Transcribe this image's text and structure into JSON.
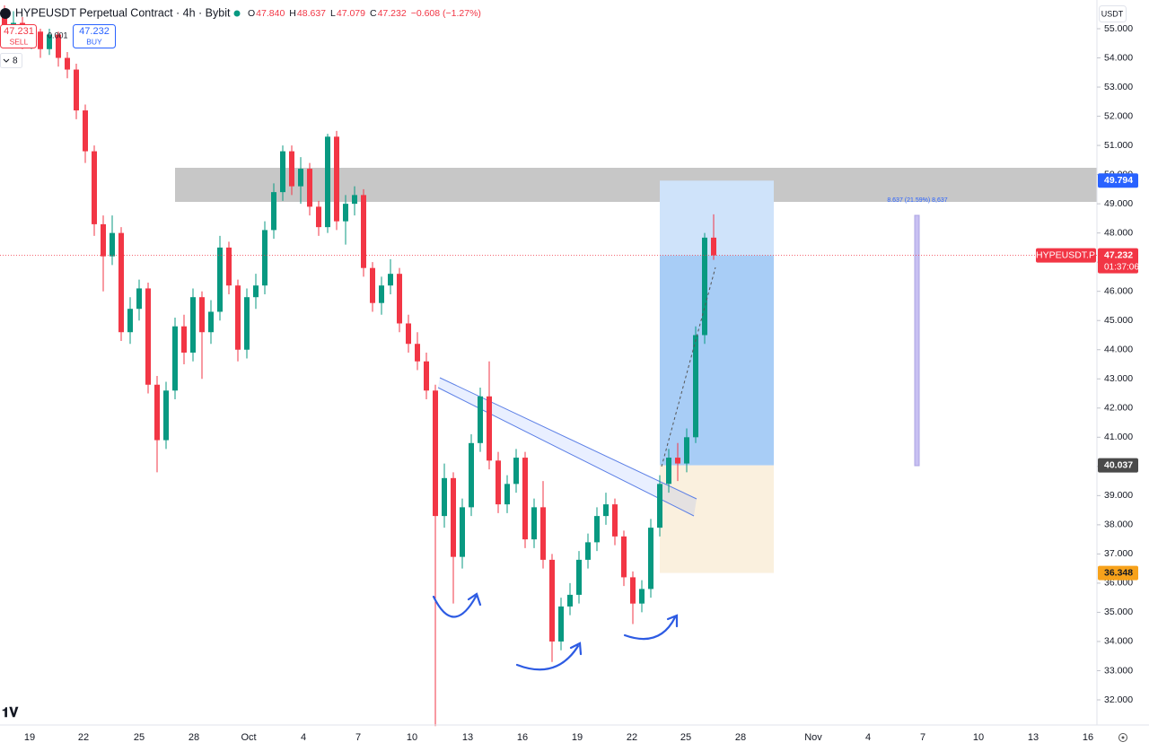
{
  "header": {
    "title": "HYPEUSDT Perpetual Contract · 4h · Bybit",
    "ohlc": [
      {
        "label": "O",
        "value": "47.840"
      },
      {
        "label": "H",
        "value": "48.637"
      },
      {
        "label": "L",
        "value": "47.079"
      },
      {
        "label": "C",
        "value": "47.232"
      }
    ],
    "change": "−0.608 (−1.27%)",
    "sell": {
      "price": "47.231",
      "label": "SELL"
    },
    "quantity": "0.001",
    "buy": {
      "price": "47.232",
      "label": "BUY"
    },
    "indicators": "8",
    "currency": "USDT"
  },
  "chart_data": {
    "type": "candlestick",
    "up_color": "#089981",
    "down_color": "#f23645",
    "grid": false,
    "ylim": [
      32,
      55
    ],
    "yticks": [
      {
        "value": 55,
        "label": "55.000"
      },
      {
        "value": 54,
        "label": "54.000"
      },
      {
        "value": 53,
        "label": "53.000"
      },
      {
        "value": 52,
        "label": "52.000"
      },
      {
        "value": 51,
        "label": "51.000"
      },
      {
        "value": 50,
        "label": "50.000"
      },
      {
        "value": 49,
        "label": "49.000"
      },
      {
        "value": 48,
        "label": "48.000"
      },
      {
        "value": 47,
        "label": "47.000"
      },
      {
        "value": 46,
        "label": "46.000"
      },
      {
        "value": 45,
        "label": "45.000"
      },
      {
        "value": 44,
        "label": "44.000"
      },
      {
        "value": 43,
        "label": "43.000"
      },
      {
        "value": 42,
        "label": "42.000"
      },
      {
        "value": 41,
        "label": "41.000"
      },
      {
        "value": 40,
        "label": "40.000"
      },
      {
        "value": 39,
        "label": "39.000"
      },
      {
        "value": 38,
        "label": "38.000"
      },
      {
        "value": 37,
        "label": "37.000"
      },
      {
        "value": 36,
        "label": "36.000"
      },
      {
        "value": 35,
        "label": "35.000"
      },
      {
        "value": 34,
        "label": "34.000"
      },
      {
        "value": 33,
        "label": "33.000"
      },
      {
        "value": 32,
        "label": "32.000"
      }
    ],
    "x_labels": [
      "19",
      "22",
      "25",
      "28",
      "Oct",
      "4",
      "7",
      "10",
      "13",
      "16",
      "19",
      "22",
      "25",
      "28",
      "Nov",
      "4",
      "7",
      "10",
      "13",
      "16"
    ],
    "candles": [
      [
        55.4,
        55.8,
        54.8,
        55.0
      ],
      [
        55.0,
        55.6,
        54.7,
        55.2
      ],
      [
        55.2,
        55.4,
        54.3,
        54.6
      ],
      [
        54.6,
        55.1,
        54.3,
        54.9
      ],
      [
        54.9,
        55.0,
        54.0,
        54.3
      ],
      [
        54.3,
        55.0,
        54.1,
        54.8
      ],
      [
        54.8,
        54.9,
        53.7,
        54.0
      ],
      [
        54.0,
        54.2,
        53.3,
        53.6
      ],
      [
        53.6,
        53.8,
        51.9,
        52.2
      ],
      [
        52.2,
        52.4,
        50.4,
        50.8
      ],
      [
        50.8,
        51.0,
        47.9,
        48.3
      ],
      [
        48.3,
        48.6,
        46.0,
        47.2
      ],
      [
        47.2,
        48.6,
        46.9,
        48.0
      ],
      [
        48.0,
        48.2,
        44.3,
        44.6
      ],
      [
        44.6,
        45.8,
        44.2,
        45.4
      ],
      [
        45.4,
        46.4,
        45.0,
        46.1
      ],
      [
        46.1,
        46.3,
        42.5,
        42.8
      ],
      [
        42.8,
        43.1,
        39.8,
        40.9
      ],
      [
        40.9,
        42.9,
        40.6,
        42.6
      ],
      [
        42.6,
        45.1,
        42.3,
        44.8
      ],
      [
        44.8,
        45.2,
        43.5,
        43.9
      ],
      [
        43.9,
        46.1,
        43.6,
        45.8
      ],
      [
        45.8,
        46.0,
        43.0,
        44.6
      ],
      [
        44.6,
        45.7,
        44.2,
        45.3
      ],
      [
        45.3,
        47.9,
        45.0,
        47.5
      ],
      [
        47.5,
        47.7,
        45.9,
        46.2
      ],
      [
        46.2,
        46.4,
        43.6,
        44.0
      ],
      [
        44.0,
        46.1,
        43.7,
        45.8
      ],
      [
        45.8,
        46.6,
        45.4,
        46.2
      ],
      [
        46.2,
        48.4,
        45.9,
        48.1
      ],
      [
        48.1,
        49.7,
        47.8,
        49.4
      ],
      [
        49.4,
        51.0,
        49.1,
        50.8
      ],
      [
        50.8,
        51.0,
        49.3,
        49.6
      ],
      [
        49.6,
        50.6,
        49.0,
        50.2
      ],
      [
        50.2,
        50.4,
        48.6,
        48.9
      ],
      [
        48.9,
        49.1,
        47.9,
        48.2
      ],
      [
        48.2,
        51.4,
        48.0,
        51.3
      ],
      [
        51.3,
        51.5,
        48.1,
        48.4
      ],
      [
        48.4,
        49.3,
        47.6,
        49.0
      ],
      [
        49.0,
        49.6,
        48.6,
        49.3
      ],
      [
        49.3,
        49.5,
        46.5,
        46.8
      ],
      [
        46.8,
        47.0,
        45.3,
        45.6
      ],
      [
        45.6,
        46.5,
        45.2,
        46.2
      ],
      [
        46.2,
        47.1,
        45.9,
        46.6
      ],
      [
        46.6,
        46.8,
        44.6,
        44.9
      ],
      [
        44.9,
        45.2,
        43.9,
        44.2
      ],
      [
        44.2,
        44.6,
        43.3,
        43.6
      ],
      [
        43.6,
        43.9,
        42.3,
        42.6
      ],
      [
        42.6,
        42.8,
        31.1,
        38.3
      ],
      [
        38.3,
        40.1,
        37.9,
        39.6
      ],
      [
        39.6,
        39.8,
        35.3,
        36.9
      ],
      [
        36.9,
        38.9,
        36.5,
        38.6
      ],
      [
        38.6,
        41.1,
        38.3,
        40.8
      ],
      [
        40.8,
        42.7,
        40.5,
        42.4
      ],
      [
        42.4,
        43.6,
        39.9,
        40.2
      ],
      [
        40.2,
        40.5,
        38.4,
        38.7
      ],
      [
        38.7,
        39.7,
        38.4,
        39.4
      ],
      [
        39.4,
        40.6,
        39.1,
        40.3
      ],
      [
        40.3,
        40.5,
        37.2,
        37.5
      ],
      [
        37.5,
        38.9,
        37.2,
        38.6
      ],
      [
        38.6,
        39.5,
        36.5,
        36.8
      ],
      [
        36.8,
        37.0,
        33.3,
        34.0
      ],
      [
        34.0,
        35.5,
        33.7,
        35.2
      ],
      [
        35.2,
        36.0,
        34.9,
        35.6
      ],
      [
        35.6,
        37.1,
        35.3,
        36.8
      ],
      [
        36.8,
        37.7,
        36.5,
        37.4
      ],
      [
        37.4,
        38.6,
        37.1,
        38.3
      ],
      [
        38.3,
        39.1,
        38.0,
        38.7
      ],
      [
        38.7,
        38.9,
        37.3,
        37.6
      ],
      [
        37.6,
        37.8,
        35.9,
        36.2
      ],
      [
        36.2,
        36.4,
        34.6,
        35.3
      ],
      [
        35.3,
        36.1,
        35.0,
        35.8
      ],
      [
        35.8,
        38.2,
        35.5,
        37.9
      ],
      [
        37.9,
        39.7,
        37.6,
        39.4
      ],
      [
        39.4,
        40.6,
        39.1,
        40.3
      ],
      [
        40.3,
        40.8,
        39.5,
        40.1
      ],
      [
        40.1,
        41.3,
        39.8,
        41.0
      ],
      [
        41.0,
        44.8,
        40.8,
        44.5
      ],
      [
        44.5,
        48.0,
        44.2,
        47.84
      ],
      [
        47.84,
        48.637,
        47.079,
        47.232
      ]
    ],
    "last_price": 47.232,
    "symbol": "HYPEUSDT.P",
    "countdown": "01:37:06",
    "position": {
      "target": 49.794,
      "entry": 40.037,
      "stop": 36.348
    },
    "measure_label": "8.637 (21.59%) 8,637"
  }
}
